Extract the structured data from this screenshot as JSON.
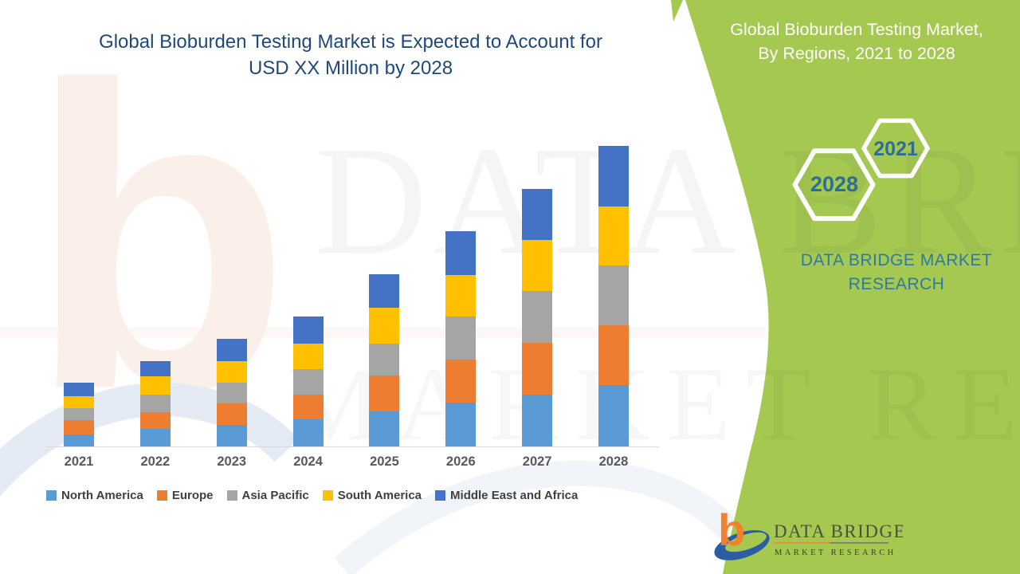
{
  "header": {
    "title_line1": "Global Bioburden Testing Market is Expected to Account for",
    "title_line2": "USD XX Million by 2028"
  },
  "side_panel": {
    "title_line1": "Global Bioburden Testing Market,",
    "title_line2": "By Regions, 2021 to 2028",
    "hexagons": [
      {
        "label": "2028"
      },
      {
        "label": "2021"
      }
    ],
    "brand_line1": "DATA BRIDGE MARKET",
    "brand_line2": "RESEARCH",
    "panel_green": "#A4C850",
    "brand_text_blue": "#2E78AC",
    "hexagon_text_blue": "#2E6E94"
  },
  "logo": {
    "name": "DATA BRIDGE",
    "subtitle": "MARKET RESEARCH",
    "b_orange": "#F0812D",
    "swoosh_blue": "#2B5CA4"
  },
  "watermark": {
    "line1": "DATA BRIDGE",
    "line2": "MARKET RESEARCH"
  },
  "chart_data": {
    "type": "bar",
    "stacked": true,
    "title": "Global Bioburden Testing Market is Expected to Account for USD XX Million by 2028",
    "subtitle": "Global Bioburden Testing Market, By Regions, 2021 to 2028",
    "xlabel": "",
    "ylabel": "",
    "y_axis_shown": false,
    "gridlines": false,
    "legend_position": "bottom",
    "value_note": "relative units estimated from bar pixel heights; no numeric axis shown (USD XX Million)",
    "ylim": [
      0,
      380
    ],
    "categories": [
      "2021",
      "2022",
      "2023",
      "2024",
      "2025",
      "2026",
      "2027",
      "2028"
    ],
    "series": [
      {
        "name": "North America",
        "color": "#5B9BD5",
        "values": [
          15,
          22,
          27,
          34,
          44,
          55,
          65,
          77
        ]
      },
      {
        "name": "Europe",
        "color": "#ED7D31",
        "values": [
          18,
          21,
          27,
          31,
          45,
          54,
          65,
          75
        ]
      },
      {
        "name": "Asia Pacific",
        "color": "#A5A5A5",
        "values": [
          15,
          22,
          26,
          32,
          40,
          54,
          65,
          75
        ]
      },
      {
        "name": "South America",
        "color": "#FFC000",
        "values": [
          15,
          23,
          27,
          32,
          45,
          52,
          64,
          74
        ]
      },
      {
        "name": "Middle East and Africa",
        "color": "#4472C4",
        "values": [
          17,
          19,
          28,
          34,
          42,
          55,
          64,
          76
        ]
      }
    ],
    "totals": [
      80,
      107,
      135,
      163,
      216,
      270,
      323,
      377
    ]
  },
  "axis": {
    "x_labels": [
      "2021",
      "2022",
      "2023",
      "2024",
      "2025",
      "2026",
      "2027",
      "2028"
    ],
    "axis_line_color": "#D9D9D9",
    "label_color": "#595959"
  }
}
